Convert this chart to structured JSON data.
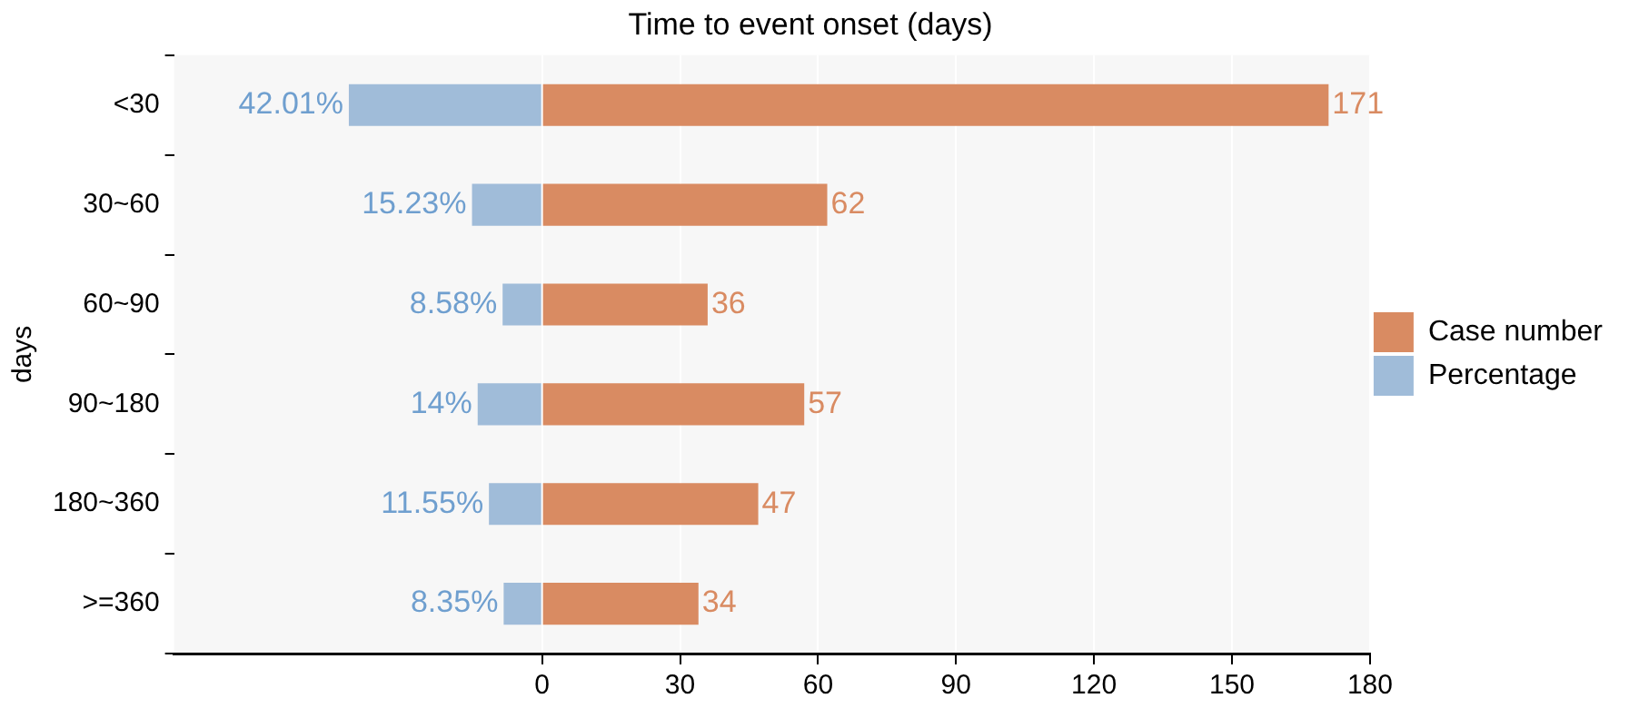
{
  "chart_data": {
    "type": "bar",
    "orientation": "horizontal",
    "title": "Time to event onset (days)",
    "ylabel": "days",
    "categories": [
      "<30",
      "30~60",
      "60~90",
      "90~180",
      "180~360",
      ">=360"
    ],
    "series": [
      {
        "name": "Case number",
        "color": "#d98b62",
        "values": [
          171,
          62,
          36,
          57,
          47,
          34
        ],
        "base": [
          0,
          0,
          0,
          0,
          0,
          0
        ],
        "value_labels": [
          "171",
          "62",
          "36",
          "57",
          "47",
          "34"
        ]
      },
      {
        "name": "Percentage",
        "color": "#a0bcd9",
        "values": [
          42.01,
          15.23,
          8.58,
          14,
          11.55,
          8.35
        ],
        "base": [
          -42.01,
          -15.23,
          -8.58,
          -14,
          -11.55,
          -8.35
        ],
        "value_labels": [
          "42.01%",
          "15.23%",
          "8.58%",
          "14%",
          "11.55%",
          "8.35%"
        ]
      }
    ],
    "xlim": [
      -80,
      180
    ],
    "xticks": [
      0,
      30,
      60,
      90,
      120,
      150,
      180
    ],
    "grid": "x",
    "legend": "right"
  }
}
